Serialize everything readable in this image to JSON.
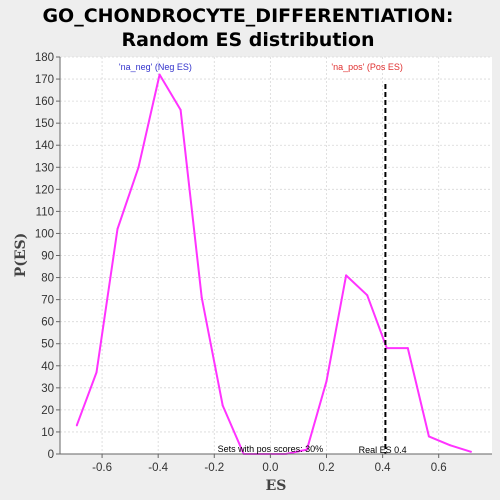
{
  "chart_data": {
    "type": "line",
    "title_line1": "GO_CHONDROCYTE_DIFFERENTIATION:",
    "title_line2": "Random ES distribution",
    "xlabel": "ES",
    "ylabel": "P(ES)",
    "xlim": [
      -0.75,
      0.79
    ],
    "ylim": [
      0,
      180
    ],
    "xticks": [
      -0.6,
      -0.4,
      -0.2,
      0.0,
      0.2,
      0.4,
      0.6
    ],
    "xtick_labels": [
      "-0.6",
      "-0.4",
      "-0.2",
      "0.0",
      "0.2",
      "0.4",
      "0.6"
    ],
    "yticks": [
      0,
      10,
      20,
      30,
      40,
      50,
      60,
      70,
      80,
      90,
      100,
      110,
      120,
      130,
      140,
      150,
      160,
      170,
      180
    ],
    "grid": true,
    "series": [
      {
        "color": "#ff33ff",
        "x": [
          -0.69,
          -0.62,
          -0.545,
          -0.47,
          -0.395,
          -0.32,
          -0.245,
          -0.17,
          -0.095,
          -0.02,
          0.055,
          0.13,
          0.2,
          0.27,
          0.345,
          0.415,
          0.49,
          0.565,
          0.64,
          0.715
        ],
        "y": [
          13,
          37,
          102,
          130,
          172,
          156,
          71,
          22,
          0,
          0,
          0,
          2,
          33,
          81,
          72,
          48,
          48,
          8,
          4,
          1
        ]
      }
    ],
    "real_es": 0.41,
    "real_es_color": "#000000",
    "annotations": {
      "neg_label": "'na_neg' (Neg ES)",
      "neg_color": "#3333cc",
      "pos_label": "'na_pos' (Pos ES)",
      "pos_color": "#e03030",
      "sets_pos_text": "Sets with pos scores: 30%",
      "real_es_text": "Real ES 0.4"
    }
  }
}
